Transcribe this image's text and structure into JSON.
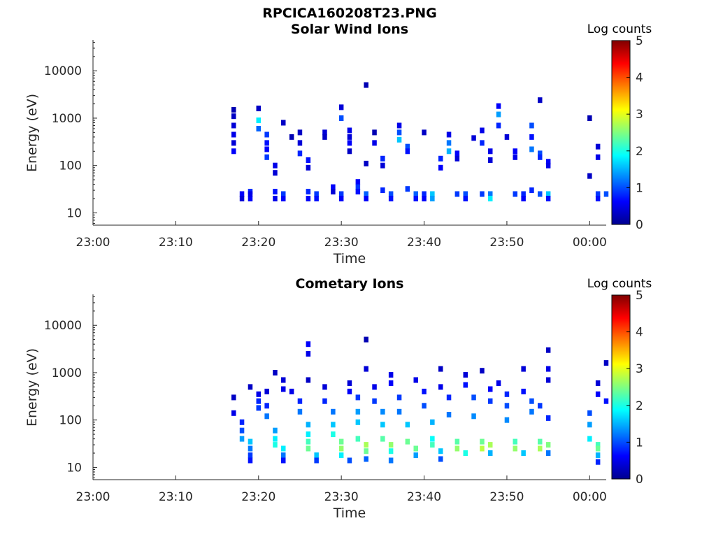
{
  "figure_title": "RPCICA160208T23.PNG",
  "colormap": [
    "#00008f",
    "#0000ff",
    "#0080ff",
    "#00ffff",
    "#80ff80",
    "#ffff00",
    "#ff8000",
    "#ff0000",
    "#800000"
  ],
  "chart_data": [
    {
      "type": "heatmap",
      "title": "Solar Wind Ions",
      "xlabel": "Time",
      "ylabel": "Energy (eV)",
      "y_scale": "log",
      "ylim": [
        5.5,
        45000
      ],
      "xlim": [
        "23:00",
        "00:02"
      ],
      "x_ticks": [
        "23:00",
        "23:10",
        "23:20",
        "23:30",
        "23:40",
        "23:50",
        "00:00"
      ],
      "y_ticks": [
        "10",
        "100",
        "1000",
        "10000"
      ],
      "colorbar": {
        "label": "Log counts",
        "range": [
          0,
          5
        ],
        "ticks": [
          "0",
          "1",
          "2",
          "3",
          "4",
          "5"
        ]
      },
      "cells": [
        [
          "23:17",
          1500,
          0.2
        ],
        [
          "23:17",
          1100,
          0.3
        ],
        [
          "23:17",
          700,
          0.4
        ],
        [
          "23:17",
          450,
          0.5
        ],
        [
          "23:17",
          300,
          0.4
        ],
        [
          "23:17",
          200,
          0.6
        ],
        [
          "23:18",
          25,
          0.6
        ],
        [
          "23:18",
          20,
          0.4
        ],
        [
          "23:19",
          28,
          0.8
        ],
        [
          "23:19",
          20,
          0.6
        ],
        [
          "23:19",
          25,
          0.5
        ],
        [
          "23:20",
          1600,
          0.3
        ],
        [
          "23:20",
          900,
          1.8
        ],
        [
          "23:20",
          600,
          1.1
        ],
        [
          "23:21",
          450,
          0.9
        ],
        [
          "23:21",
          300,
          0.7
        ],
        [
          "23:21",
          220,
          0.6
        ],
        [
          "23:21",
          150,
          0.9
        ],
        [
          "23:22",
          100,
          0.5
        ],
        [
          "23:22",
          70,
          0.4
        ],
        [
          "23:22",
          28,
          0.7
        ],
        [
          "23:22",
          20,
          0.5
        ],
        [
          "23:23",
          25,
          0.9
        ],
        [
          "23:23",
          20,
          0.6
        ],
        [
          "23:23",
          800,
          0.3
        ],
        [
          "23:24",
          400,
          0.2
        ],
        [
          "23:25",
          500,
          0.3
        ],
        [
          "23:25",
          300,
          0.4
        ],
        [
          "23:25",
          180,
          0.8
        ],
        [
          "23:26",
          130,
          0.7
        ],
        [
          "23:26",
          90,
          0.4
        ],
        [
          "23:26",
          28,
          0.8
        ],
        [
          "23:26",
          20,
          0.6
        ],
        [
          "23:27",
          25,
          0.9
        ],
        [
          "23:27",
          20,
          0.7
        ],
        [
          "23:28",
          500,
          0.4
        ],
        [
          "23:28",
          400,
          0.3
        ],
        [
          "23:29",
          35,
          0.6
        ],
        [
          "23:29",
          28,
          0.4
        ],
        [
          "23:30",
          25,
          0.9
        ],
        [
          "23:30",
          20,
          0.6
        ],
        [
          "23:30",
          1700,
          0.4
        ],
        [
          "23:30",
          1000,
          1.0
        ],
        [
          "23:31",
          550,
          0.5
        ],
        [
          "23:31",
          400,
          0.4
        ],
        [
          "23:31",
          300,
          0.6
        ],
        [
          "23:31",
          200,
          0.3
        ],
        [
          "23:32",
          45,
          0.6
        ],
        [
          "23:32",
          35,
          0.9
        ],
        [
          "23:32",
          28,
          0.7
        ],
        [
          "23:33",
          25,
          1.1
        ],
        [
          "23:33",
          20,
          0.6
        ],
        [
          "23:33",
          110,
          0.3
        ],
        [
          "23:33",
          5000,
          0.2
        ],
        [
          "23:34",
          500,
          0.2
        ],
        [
          "23:34",
          300,
          0.5
        ],
        [
          "23:35",
          140,
          0.8
        ],
        [
          "23:35",
          100,
          0.4
        ],
        [
          "23:35",
          30,
          0.8
        ],
        [
          "23:36",
          25,
          1.0
        ],
        [
          "23:36",
          20,
          0.7
        ],
        [
          "23:37",
          700,
          0.5
        ],
        [
          "23:37",
          500,
          1.0
        ],
        [
          "23:37",
          350,
          1.6
        ],
        [
          "23:38",
          250,
          1.0
        ],
        [
          "23:38",
          200,
          0.7
        ],
        [
          "23:38",
          32,
          0.9
        ],
        [
          "23:39",
          25,
          1.1
        ],
        [
          "23:39",
          20,
          0.7
        ],
        [
          "23:40",
          25,
          0.8
        ],
        [
          "23:40",
          20,
          0.6
        ],
        [
          "23:40",
          500,
          0.3
        ],
        [
          "23:41",
          25,
          1.6
        ],
        [
          "23:41",
          20,
          1.4
        ],
        [
          "23:42",
          140,
          0.8
        ],
        [
          "23:42",
          90,
          0.6
        ],
        [
          "23:43",
          450,
          0.5
        ],
        [
          "23:43",
          300,
          1.2
        ],
        [
          "23:43",
          200,
          1.5
        ],
        [
          "23:44",
          180,
          0.6
        ],
        [
          "23:44",
          140,
          0.4
        ],
        [
          "23:44",
          25,
          0.9
        ],
        [
          "23:45",
          25,
          1.0
        ],
        [
          "23:45",
          20,
          0.7
        ],
        [
          "23:46",
          380,
          0.4
        ],
        [
          "23:47",
          550,
          0.5
        ],
        [
          "23:47",
          300,
          0.8
        ],
        [
          "23:48",
          200,
          0.5
        ],
        [
          "23:48",
          130,
          0.4
        ],
        [
          "23:47",
          25,
          0.9
        ],
        [
          "23:48",
          25,
          1.2
        ],
        [
          "23:48",
          20,
          1.8
        ],
        [
          "23:49",
          1800,
          0.6
        ],
        [
          "23:49",
          1200,
          1.4
        ],
        [
          "23:49",
          700,
          0.8
        ],
        [
          "23:50",
          400,
          0.4
        ],
        [
          "23:51",
          200,
          0.6
        ],
        [
          "23:51",
          150,
          0.5
        ],
        [
          "23:51",
          25,
          0.9
        ],
        [
          "23:52",
          25,
          0.8
        ],
        [
          "23:52",
          20,
          0.6
        ],
        [
          "23:53",
          700,
          1.0
        ],
        [
          "23:53",
          400,
          0.7
        ],
        [
          "23:53",
          220,
          1.2
        ],
        [
          "23:54",
          180,
          1.0
        ],
        [
          "23:54",
          150,
          0.8
        ],
        [
          "23:55",
          120,
          0.6
        ],
        [
          "23:55",
          100,
          0.5
        ],
        [
          "23:54",
          2400,
          0.3
        ],
        [
          "23:53",
          30,
          0.8
        ],
        [
          "23:54",
          25,
          1.0
        ],
        [
          "23:55",
          25,
          1.6
        ],
        [
          "23:55",
          20,
          0.7
        ],
        [
          "00:00",
          1000,
          0.2
        ],
        [
          "00:00",
          60,
          0.3
        ],
        [
          "00:01",
          250,
          0.4
        ],
        [
          "00:01",
          150,
          0.5
        ],
        [
          "00:01",
          25,
          0.9
        ],
        [
          "00:01",
          20,
          0.7
        ],
        [
          "00:02",
          25,
          1.0
        ]
      ]
    },
    {
      "type": "heatmap",
      "title": "Cometary Ions",
      "xlabel": "Time",
      "ylabel": "Energy (eV)",
      "y_scale": "log",
      "ylim": [
        5.5,
        45000
      ],
      "xlim": [
        "23:00",
        "00:02"
      ],
      "x_ticks": [
        "23:00",
        "23:10",
        "23:20",
        "23:30",
        "23:40",
        "23:50",
        "00:00"
      ],
      "y_ticks": [
        "10",
        "100",
        "1000",
        "10000"
      ],
      "colorbar": {
        "label": "Log counts",
        "range": [
          0,
          5
        ],
        "ticks": [
          "0",
          "1",
          "2",
          "3",
          "4",
          "5"
        ]
      },
      "cells": [
        [
          "23:17",
          300,
          0.3
        ],
        [
          "23:17",
          140,
          0.5
        ],
        [
          "23:18",
          90,
          0.8
        ],
        [
          "23:18",
          60,
          1.0
        ],
        [
          "23:18",
          40,
          1.4
        ],
        [
          "23:19",
          35,
          1.6
        ],
        [
          "23:19",
          25,
          1.2
        ],
        [
          "23:19",
          18,
          0.9
        ],
        [
          "23:19",
          14,
          0.7
        ],
        [
          "23:19",
          500,
          0.3
        ],
        [
          "23:20",
          350,
          0.5
        ],
        [
          "23:20",
          250,
          0.8
        ],
        [
          "23:20",
          180,
          0.9
        ],
        [
          "23:21",
          400,
          0.4
        ],
        [
          "23:21",
          200,
          0.8
        ],
        [
          "23:21",
          120,
          1.2
        ],
        [
          "23:22",
          60,
          1.4
        ],
        [
          "23:22",
          40,
          1.8
        ],
        [
          "23:22",
          30,
          2.0
        ],
        [
          "23:23",
          25,
          1.8
        ],
        [
          "23:23",
          18,
          1.2
        ],
        [
          "23:23",
          14,
          0.7
        ],
        [
          "23:22",
          1000,
          0.3
        ],
        [
          "23:23",
          700,
          0.4
        ],
        [
          "23:23",
          450,
          0.5
        ],
        [
          "23:24",
          400,
          0.5
        ],
        [
          "23:25",
          250,
          0.8
        ],
        [
          "23:25",
          150,
          1.2
        ],
        [
          "23:26",
          80,
          1.5
        ],
        [
          "23:26",
          50,
          1.8
        ],
        [
          "23:26",
          35,
          2.2
        ],
        [
          "23:26",
          25,
          2.4
        ],
        [
          "23:27",
          18,
          1.6
        ],
        [
          "23:27",
          14,
          0.9
        ],
        [
          "23:26",
          4000,
          0.6
        ],
        [
          "23:26",
          2500,
          0.5
        ],
        [
          "23:26",
          700,
          0.3
        ],
        [
          "23:28",
          500,
          0.4
        ],
        [
          "23:28",
          250,
          0.8
        ],
        [
          "23:29",
          150,
          1.2
        ],
        [
          "23:29",
          80,
          1.6
        ],
        [
          "23:29",
          50,
          2.0
        ],
        [
          "23:30",
          35,
          2.4
        ],
        [
          "23:30",
          25,
          2.6
        ],
        [
          "23:30",
          18,
          1.8
        ],
        [
          "23:31",
          14,
          1.0
        ],
        [
          "23:31",
          600,
          0.4
        ],
        [
          "23:31",
          400,
          0.6
        ],
        [
          "23:32",
          300,
          0.9
        ],
        [
          "23:32",
          150,
          1.4
        ],
        [
          "23:32",
          90,
          1.6
        ],
        [
          "23:32",
          40,
          2.2
        ],
        [
          "23:33",
          30,
          2.7
        ],
        [
          "23:33",
          22,
          2.4
        ],
        [
          "23:33",
          15,
          1.1
        ],
        [
          "23:33",
          1200,
          0.4
        ],
        [
          "23:33",
          5000,
          0.2
        ],
        [
          "23:34",
          500,
          0.5
        ],
        [
          "23:34",
          250,
          0.9
        ],
        [
          "23:35",
          150,
          1.3
        ],
        [
          "23:35",
          80,
          1.6
        ],
        [
          "23:35",
          40,
          2.3
        ],
        [
          "23:36",
          30,
          2.6
        ],
        [
          "23:36",
          22,
          2.0
        ],
        [
          "23:36",
          14,
          1.2
        ],
        [
          "23:36",
          900,
          0.5
        ],
        [
          "23:36",
          600,
          0.6
        ],
        [
          "23:37",
          300,
          0.9
        ],
        [
          "23:37",
          150,
          1.2
        ],
        [
          "23:38",
          80,
          1.6
        ],
        [
          "23:38",
          35,
          2.4
        ],
        [
          "23:39",
          25,
          2.4
        ],
        [
          "23:39",
          18,
          1.4
        ],
        [
          "23:39",
          700,
          0.5
        ],
        [
          "23:40",
          400,
          0.7
        ],
        [
          "23:40",
          200,
          1.0
        ],
        [
          "23:41",
          90,
          1.5
        ],
        [
          "23:41",
          40,
          1.9
        ],
        [
          "23:41",
          30,
          2.2
        ],
        [
          "23:42",
          22,
          1.6
        ],
        [
          "23:42",
          15,
          1.0
        ],
        [
          "23:42",
          1200,
          0.3
        ],
        [
          "23:42",
          500,
          0.5
        ],
        [
          "23:43",
          300,
          0.8
        ],
        [
          "23:43",
          130,
          1.2
        ],
        [
          "23:44",
          35,
          2.3
        ],
        [
          "23:44",
          25,
          2.6
        ],
        [
          "23:45",
          20,
          2.0
        ],
        [
          "23:45",
          900,
          0.4
        ],
        [
          "23:45",
          550,
          0.7
        ],
        [
          "23:46",
          300,
          1.0
        ],
        [
          "23:46",
          120,
          1.3
        ],
        [
          "23:47",
          35,
          2.4
        ],
        [
          "23:47",
          25,
          2.8
        ],
        [
          "23:48",
          30,
          2.7
        ],
        [
          "23:48",
          20,
          1.5
        ],
        [
          "23:47",
          1100,
          0.3
        ],
        [
          "23:48",
          450,
          0.6
        ],
        [
          "23:48",
          250,
          0.9
        ],
        [
          "23:49",
          600,
          0.5
        ],
        [
          "23:50",
          350,
          0.8
        ],
        [
          "23:50",
          200,
          1.0
        ],
        [
          "23:50",
          100,
          1.3
        ],
        [
          "23:51",
          35,
          2.2
        ],
        [
          "23:51",
          25,
          2.6
        ],
        [
          "23:52",
          20,
          1.6
        ],
        [
          "23:52",
          1200,
          0.4
        ],
        [
          "23:52",
          400,
          0.7
        ],
        [
          "23:53",
          250,
          1.0
        ],
        [
          "23:53",
          150,
          1.2
        ],
        [
          "23:54",
          35,
          2.3
        ],
        [
          "23:54",
          25,
          2.7
        ],
        [
          "23:55",
          30,
          2.5
        ],
        [
          "23:55",
          20,
          1.2
        ],
        [
          "23:55",
          3000,
          0.3
        ],
        [
          "23:55",
          1200,
          0.5
        ],
        [
          "23:55",
          700,
          0.4
        ],
        [
          "23:54",
          200,
          0.9
        ],
        [
          "23:55",
          110,
          0.8
        ],
        [
          "00:00",
          140,
          1.0
        ],
        [
          "00:00",
          80,
          1.4
        ],
        [
          "00:00",
          40,
          1.8
        ],
        [
          "00:01",
          30,
          2.2
        ],
        [
          "00:01",
          25,
          2.4
        ],
        [
          "00:01",
          18,
          1.5
        ],
        [
          "00:01",
          13,
          0.8
        ],
        [
          "00:01",
          600,
          0.4
        ],
        [
          "00:01",
          350,
          0.6
        ],
        [
          "00:02",
          250,
          0.7
        ],
        [
          "00:02",
          1600,
          0.3
        ]
      ]
    }
  ]
}
